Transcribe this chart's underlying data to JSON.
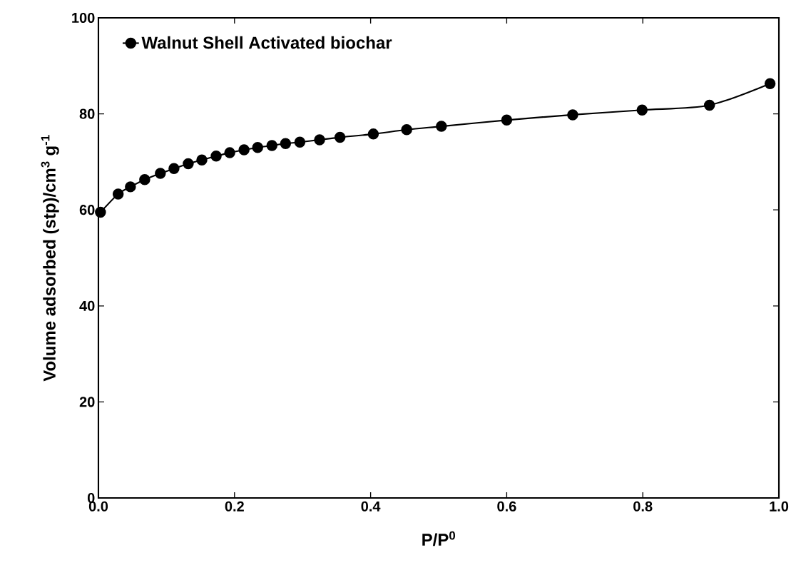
{
  "chart_data": {
    "type": "line",
    "xlabel": "P/P$^{0}$",
    "ylabel": "Volume adsorbed (stp)/cm$^{3}$ g$^{-1}$",
    "xlim": [
      0.0,
      1.0
    ],
    "ylim": [
      0,
      100
    ],
    "xticks": [
      {
        "value": 0,
        "label": "0.0"
      },
      0.2,
      0.4,
      0.6,
      0.8,
      {
        "value": 1,
        "label": "1.0"
      }
    ],
    "yticks": [
      0,
      20,
      40,
      60,
      80,
      100
    ],
    "x": [
      0.003,
      0.029,
      0.047,
      0.068,
      0.091,
      0.111,
      0.132,
      0.152,
      0.173,
      0.193,
      0.214,
      0.234,
      0.255,
      0.275,
      0.296,
      0.325,
      0.355,
      0.404,
      0.453,
      0.504,
      0.6,
      0.697,
      0.799,
      0.898,
      0.987
    ],
    "series": [
      {
        "name": "Walnut Shell Activated biochar",
        "color": "#000000",
        "values": [
          59.5,
          63.3,
          64.8,
          66.3,
          67.6,
          68.6,
          69.6,
          70.4,
          71.2,
          71.9,
          72.5,
          73.0,
          73.4,
          73.8,
          74.1,
          74.6,
          75.1,
          75.8,
          76.7,
          77.4,
          78.7,
          79.8,
          80.8,
          81.8,
          86.3
        ]
      }
    ],
    "legend": "top left",
    "marker": "circle",
    "line_style": "solid",
    "grid": false
  }
}
